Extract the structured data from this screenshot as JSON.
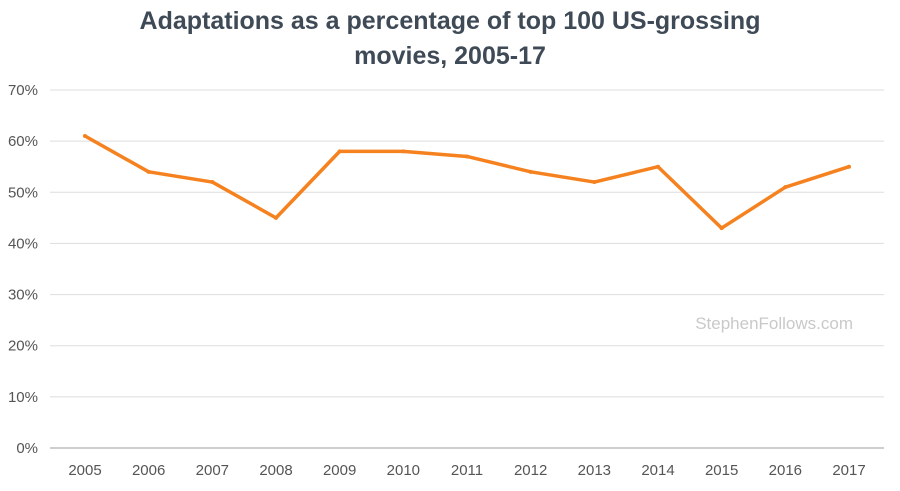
{
  "chart_data": {
    "type": "line",
    "title_lines": [
      "Adaptations as a percentage of top 100 US-grossing",
      "movies, 2005-17"
    ],
    "xlabel": "",
    "ylabel": "",
    "categories": [
      "2005",
      "2006",
      "2007",
      "2008",
      "2009",
      "2010",
      "2011",
      "2012",
      "2013",
      "2014",
      "2015",
      "2016",
      "2017"
    ],
    "series": [
      {
        "values": [
          61,
          54,
          52,
          45,
          58,
          58,
          57,
          54,
          52,
          55,
          43,
          51,
          55
        ],
        "color": "#f5821f"
      }
    ],
    "y_ticks": [
      "0%",
      "10%",
      "20%",
      "30%",
      "40%",
      "50%",
      "60%",
      "70%"
    ],
    "ylim": [
      0,
      70
    ],
    "grid": true,
    "legend": "none",
    "watermark": "StephenFollows.com"
  }
}
